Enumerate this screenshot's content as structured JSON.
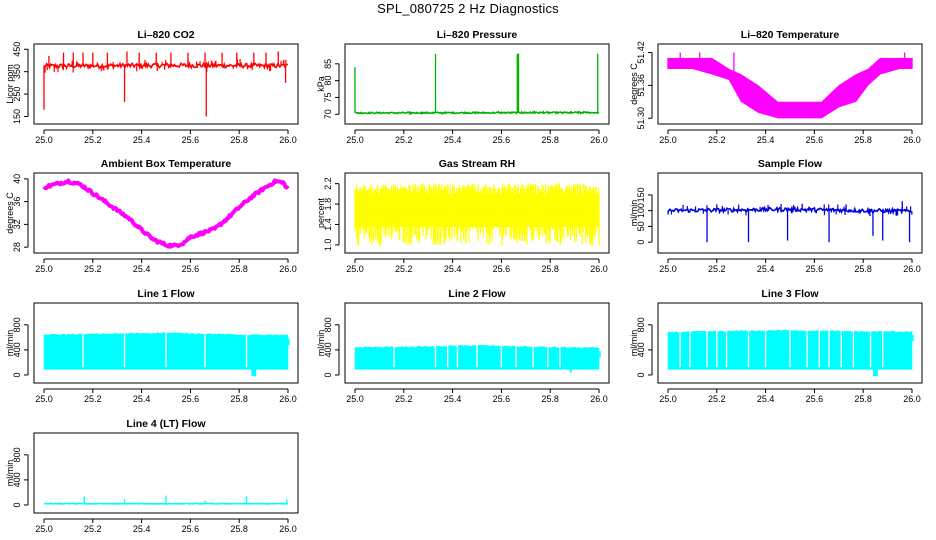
{
  "title": "SPL_080725  2 Hz Diagnostics",
  "chart_data": [
    {
      "type": "line",
      "title": "Li–820 CO2",
      "xlabel": "",
      "ylabel": "Licor ppm",
      "color": "#ff0000",
      "xlim": [
        25.0,
        26.0
      ],
      "ylim": [
        130,
        460
      ],
      "xticks": [
        "25.0",
        "25.2",
        "25.4",
        "25.6",
        "25.8",
        "26.0"
      ],
      "yticks": [
        {
          "v": 150,
          "label": "150"
        },
        {
          "v": 250,
          "label": "250"
        },
        {
          "v": 350,
          "label": "350"
        },
        {
          "v": 450,
          "label": "450"
        }
      ],
      "series": [
        {
          "name": "CO2",
          "style": "baseline",
          "base": 375,
          "noise": 10,
          "low": 340,
          "points": [
            [
              25.0,
              375
            ],
            [
              25.5,
              378
            ],
            [
              26.0,
              376
            ]
          ],
          "spikes": [
            [
              25.0,
              180
            ],
            [
              25.02,
              420
            ],
            [
              25.08,
              435
            ],
            [
              25.12,
              435
            ],
            [
              25.16,
              435
            ],
            [
              25.2,
              435
            ],
            [
              25.26,
              435
            ],
            [
              25.33,
              215
            ],
            [
              25.34,
              440
            ],
            [
              25.39,
              435
            ],
            [
              25.46,
              435
            ],
            [
              25.52,
              435
            ],
            [
              25.59,
              435
            ],
            [
              25.66,
              435
            ],
            [
              25.665,
              150
            ],
            [
              25.73,
              435
            ],
            [
              25.79,
              435
            ],
            [
              25.86,
              435
            ],
            [
              25.91,
              435
            ],
            [
              25.96,
              440
            ],
            [
              25.99,
              300
            ]
          ]
        }
      ]
    },
    {
      "type": "line",
      "title": "Li–820 Pressure",
      "xlabel": "",
      "ylabel": "kPa",
      "color": "#00b000",
      "xlim": [
        25.0,
        26.0
      ],
      "ylim": [
        68,
        90
      ],
      "xticks": [
        "25.0",
        "25.2",
        "25.4",
        "25.6",
        "25.8",
        "26.0"
      ],
      "yticks": [
        {
          "v": 70,
          "label": "70"
        },
        {
          "v": 75,
          "label": "75"
        },
        {
          "v": 80,
          "label": "80"
        },
        {
          "v": 85,
          "label": "85"
        }
      ],
      "series": [
        {
          "name": "Pressure",
          "style": "baseline",
          "base": 70.4,
          "noise": 0.2,
          "low": 70,
          "points": [
            [
              25.0,
              70.4
            ],
            [
              26.0,
              70.5
            ]
          ],
          "spikes": [
            [
              25.0,
              84
            ],
            [
              25.33,
              88
            ],
            [
              25.665,
              88
            ],
            [
              25.67,
              88
            ],
            [
              25.995,
              88
            ]
          ]
        }
      ]
    },
    {
      "type": "line",
      "title": "Li–820 Temperature",
      "xlabel": "",
      "ylabel": "degrees C",
      "color": "#ff00ff",
      "xlim": [
        25.0,
        26.0
      ],
      "ylim": [
        51.295,
        51.43
      ],
      "xticks": [
        "25.0",
        "25.2",
        "25.4",
        "25.6",
        "25.8",
        "26.0"
      ],
      "yticks": [
        {
          "v": 51.3,
          "label": "51.30"
        },
        {
          "v": 51.36,
          "label": "51.36"
        },
        {
          "v": 51.42,
          "label": "51.42"
        }
      ],
      "series": [
        {
          "name": "Temperature",
          "style": "band",
          "points": [
            [
              25.0,
              51.39,
              51.41
            ],
            [
              25.1,
              51.39,
              51.41
            ],
            [
              25.18,
              51.38,
              51.41
            ],
            [
              25.25,
              51.37,
              51.39
            ],
            [
              25.3,
              51.33,
              51.38
            ],
            [
              25.37,
              51.31,
              51.36
            ],
            [
              25.45,
              51.3,
              51.33
            ],
            [
              25.55,
              51.3,
              51.33
            ],
            [
              25.63,
              51.3,
              51.33
            ],
            [
              25.7,
              51.32,
              51.36
            ],
            [
              25.77,
              51.33,
              51.38
            ],
            [
              25.82,
              51.36,
              51.39
            ],
            [
              25.87,
              51.38,
              51.41
            ],
            [
              25.95,
              51.39,
              51.41
            ],
            [
              26.0,
              51.39,
              51.41
            ]
          ],
          "spikes": [
            [
              25.05,
              51.42
            ],
            [
              25.13,
              51.42
            ],
            [
              25.27,
              51.42
            ],
            [
              25.97,
              51.42
            ]
          ]
        }
      ]
    },
    {
      "type": "line",
      "title": "Ambient Box Temperature",
      "xlabel": "",
      "ylabel": "degrees C",
      "color": "#ff00ff",
      "xlim": [
        25.0,
        26.0
      ],
      "ylim": [
        27.5,
        40.5
      ],
      "xticks": [
        "25.0",
        "25.2",
        "25.4",
        "25.6",
        "25.8",
        "26.0"
      ],
      "yticks": [
        {
          "v": 28,
          "label": "28"
        },
        {
          "v": 32,
          "label": "32"
        },
        {
          "v": 36,
          "label": "36"
        },
        {
          "v": 40,
          "label": "40"
        }
      ],
      "series": [
        {
          "name": "BoxTemp",
          "style": "thick",
          "points": [
            [
              25.0,
              38.5
            ],
            [
              25.05,
              39.1
            ],
            [
              25.1,
              39.6
            ],
            [
              25.15,
              39.0
            ],
            [
              25.2,
              37.5
            ],
            [
              25.25,
              36.0
            ],
            [
              25.3,
              34.5
            ],
            [
              25.35,
              33.0
            ],
            [
              25.4,
              31.0
            ],
            [
              25.45,
              29.3
            ],
            [
              25.5,
              28.4
            ],
            [
              25.53,
              28.2
            ],
            [
              25.57,
              28.7
            ],
            [
              25.6,
              29.8
            ],
            [
              25.65,
              30.5
            ],
            [
              25.7,
              31.2
            ],
            [
              25.75,
              33.0
            ],
            [
              25.8,
              35.0
            ],
            [
              25.85,
              36.8
            ],
            [
              25.9,
              38.3
            ],
            [
              25.95,
              39.6
            ],
            [
              25.98,
              39.3
            ],
            [
              26.0,
              38.2
            ]
          ]
        }
      ]
    },
    {
      "type": "line",
      "title": "Gas Stream RH",
      "xlabel": "",
      "ylabel": "percent",
      "color": "#ffff00",
      "xlim": [
        25.0,
        26.0
      ],
      "ylim": [
        0.9,
        2.35
      ],
      "xticks": [
        "25.0",
        "25.2",
        "25.4",
        "25.6",
        "25.8",
        "26.0"
      ],
      "yticks": [
        {
          "v": 1.0,
          "label": "1.0"
        },
        {
          "v": 1.4,
          "label": "1.4"
        },
        {
          "v": 1.8,
          "label": "1.8"
        },
        {
          "v": 2.2,
          "label": "2.2"
        }
      ],
      "series": [
        {
          "name": "RH",
          "style": "noise",
          "lo": 0.98,
          "hi": 2.2,
          "points": [
            [
              25.0,
              1.9
            ],
            [
              26.0,
              1.9
            ]
          ]
        }
      ]
    },
    {
      "type": "line",
      "title": "Sample Flow",
      "xlabel": "",
      "ylabel": "ml/min",
      "color": "#0000dd",
      "xlim": [
        25.0,
        26.0
      ],
      "ylim": [
        -25,
        210
      ],
      "xticks": [
        "25.0",
        "25.2",
        "25.4",
        "25.6",
        "25.8",
        "26.0"
      ],
      "yticks": [
        {
          "v": 0,
          "label": "0"
        },
        {
          "v": 50,
          "label": "50"
        },
        {
          "v": 100,
          "label": "100"
        },
        {
          "v": 150,
          "label": "150"
        }
      ],
      "series": [
        {
          "name": "SampleFlow",
          "style": "baseline",
          "base": 100,
          "noise": 6,
          "low": 85,
          "points": [
            [
              25.0,
              100
            ],
            [
              25.5,
              104
            ],
            [
              26.0,
              98
            ]
          ],
          "spikes": [
            [
              25.16,
              0
            ],
            [
              25.33,
              0
            ],
            [
              25.49,
              5
            ],
            [
              25.66,
              0
            ],
            [
              25.84,
              20
            ],
            [
              25.88,
              5
            ],
            [
              25.99,
              0
            ],
            [
              25.2,
              120
            ],
            [
              25.41,
              118
            ],
            [
              25.55,
              122
            ],
            [
              25.73,
              120
            ],
            [
              25.96,
              130
            ]
          ]
        }
      ]
    },
    {
      "type": "line",
      "title": "Line 1 Flow",
      "xlabel": "",
      "ylabel": "ml/min",
      "color": "#00ffff",
      "xlim": [
        25.0,
        26.0
      ],
      "ylim": [
        -80,
        1100
      ],
      "xticks": [
        "25.0",
        "25.2",
        "25.4",
        "25.6",
        "25.8",
        "26.0"
      ],
      "yticks": [
        {
          "v": 0,
          "label": "0"
        },
        {
          "v": 400,
          "label": "400"
        },
        {
          "v": 800,
          "label": "800"
        }
      ],
      "series": [
        {
          "name": "Line1",
          "style": "block",
          "lo": 90,
          "points": [
            [
              25.0,
              640
            ],
            [
              25.2,
              650
            ],
            [
              25.5,
              670
            ],
            [
              25.8,
              640
            ],
            [
              26.0,
              630
            ]
          ],
          "gaps": [
            25.16,
            25.33,
            25.5,
            25.66,
            25.83
          ],
          "dips": [
            [
              25.85,
              25.87,
              -20
            ]
          ]
        }
      ]
    },
    {
      "type": "line",
      "title": "Line 2 Flow",
      "xlabel": "",
      "ylabel": "ml/min",
      "color": "#00ffff",
      "xlim": [
        25.0,
        26.0
      ],
      "ylim": [
        -80,
        1100
      ],
      "xticks": [
        "25.0",
        "25.2",
        "25.4",
        "25.6",
        "25.8",
        "26.0"
      ],
      "yticks": [
        {
          "v": 0,
          "label": "0"
        },
        {
          "v": 400,
          "label": "400"
        },
        {
          "v": 800,
          "label": "800"
        }
      ],
      "series": [
        {
          "name": "Line2",
          "style": "block",
          "lo": 90,
          "points": [
            [
              25.0,
              440
            ],
            [
              25.3,
              450
            ],
            [
              25.5,
              470
            ],
            [
              25.8,
              440
            ],
            [
              26.0,
              430
            ]
          ],
          "gaps": [
            25.16,
            25.33,
            25.38,
            25.42,
            25.5,
            25.6,
            25.66,
            25.73,
            25.79,
            25.84
          ],
          "dips": [
            [
              25.88,
              25.885,
              40
            ]
          ]
        }
      ]
    },
    {
      "type": "line",
      "title": "Line 3 Flow",
      "xlabel": "",
      "ylabel": "ml/min",
      "color": "#00ffff",
      "xlim": [
        25.0,
        26.0
      ],
      "ylim": [
        -80,
        1100
      ],
      "xticks": [
        "25.0",
        "25.2",
        "25.4",
        "25.6",
        "25.8",
        "26.0"
      ],
      "yticks": [
        {
          "v": 0,
          "label": "0"
        },
        {
          "v": 400,
          "label": "400"
        },
        {
          "v": 800,
          "label": "800"
        }
      ],
      "series": [
        {
          "name": "Line3",
          "style": "block",
          "lo": 90,
          "points": [
            [
              25.0,
              680
            ],
            [
              25.3,
              700
            ],
            [
              25.5,
              710
            ],
            [
              25.8,
              690
            ],
            [
              26.0,
              690
            ]
          ],
          "gaps": [
            25.05,
            25.09,
            25.16,
            25.2,
            25.24,
            25.33,
            25.4,
            25.5,
            25.57,
            25.62,
            25.66,
            25.71,
            25.76,
            25.83,
            25.88
          ],
          "dips": [
            [
              25.84,
              25.86,
              -20
            ]
          ]
        }
      ]
    },
    {
      "type": "line",
      "title": "Line 4 (LT) Flow",
      "xlabel": "",
      "ylabel": "ml/min",
      "color": "#00ffff",
      "xlim": [
        25.0,
        26.0
      ],
      "ylim": [
        -80,
        1100
      ],
      "xticks": [
        "25.0",
        "25.2",
        "25.4",
        "25.6",
        "25.8",
        "26.0"
      ],
      "yticks": [
        {
          "v": 0,
          "label": "0"
        },
        {
          "v": 400,
          "label": "400"
        },
        {
          "v": 800,
          "label": "800"
        }
      ],
      "series": [
        {
          "name": "Line4",
          "style": "baseline",
          "base": 20,
          "noise": 4,
          "low": 10,
          "points": [
            [
              25.0,
              20
            ],
            [
              26.0,
              20
            ]
          ],
          "spikes": [
            [
              25.165,
              140
            ],
            [
              25.33,
              90
            ],
            [
              25.5,
              150
            ],
            [
              25.66,
              70
            ],
            [
              25.83,
              140
            ],
            [
              25.995,
              90
            ]
          ]
        }
      ]
    }
  ]
}
